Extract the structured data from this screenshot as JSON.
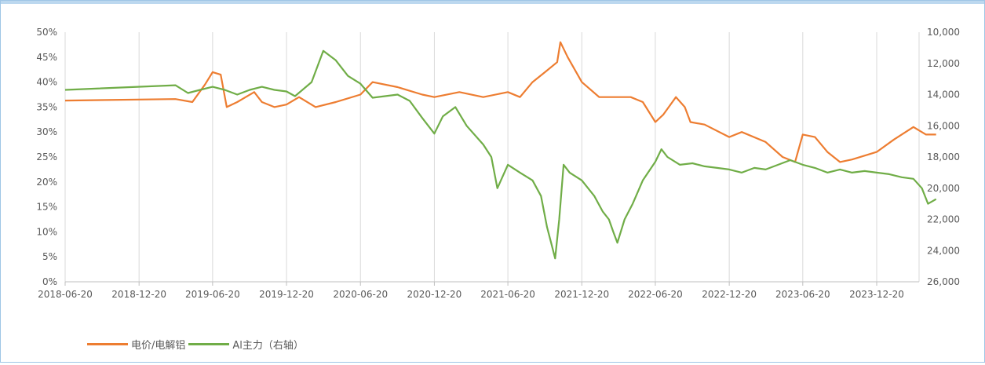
{
  "chart_data": {
    "type": "line",
    "title": "",
    "x_tick_labels": [
      "2018-06-20",
      "2018-12-20",
      "2019-06-20",
      "2019-12-20",
      "2020-06-20",
      "2020-12-20",
      "2021-06-20",
      "2021-12-20",
      "2022-06-20",
      "2022-12-20",
      "2023-06-20",
      "2023-12-20"
    ],
    "y_left": {
      "ticks": [
        "0%",
        "5%",
        "10%",
        "15%",
        "20%",
        "25%",
        "30%",
        "35%",
        "40%",
        "45%",
        "50%"
      ],
      "range": [
        0,
        50
      ]
    },
    "y_right": {
      "ticks": [
        "10,000",
        "12,000",
        "14,000",
        "16,000",
        "18,000",
        "20,000",
        "22,000",
        "24,000",
        "26,000"
      ],
      "range": [
        26000,
        10000
      ],
      "inverted": true
    },
    "legend_position": "bottom-left",
    "grid": "vertical",
    "series": [
      {
        "name": "电价/电解铝",
        "axis": "left",
        "color": "#ED7D31",
        "points": [
          [
            "2018-06-20",
            36.3
          ],
          [
            "2019-03-20",
            36.6
          ],
          [
            "2019-05-01",
            36.0
          ],
          [
            "2019-06-01",
            39.5
          ],
          [
            "2019-06-20",
            42.0
          ],
          [
            "2019-07-10",
            41.5
          ],
          [
            "2019-07-25",
            35.0
          ],
          [
            "2019-08-20",
            36.0
          ],
          [
            "2019-10-01",
            38.0
          ],
          [
            "2019-10-20",
            36.0
          ],
          [
            "2019-11-20",
            35.0
          ],
          [
            "2019-12-20",
            35.5
          ],
          [
            "2020-01-20",
            37.0
          ],
          [
            "2020-03-01",
            35.0
          ],
          [
            "2020-04-20",
            36.0
          ],
          [
            "2020-06-20",
            37.5
          ],
          [
            "2020-07-20",
            40.0
          ],
          [
            "2020-09-20",
            39.0
          ],
          [
            "2020-11-20",
            37.5
          ],
          [
            "2020-12-20",
            37.0
          ],
          [
            "2021-02-20",
            38.0
          ],
          [
            "2021-04-20",
            37.0
          ],
          [
            "2021-06-20",
            38.0
          ],
          [
            "2021-07-20",
            37.0
          ],
          [
            "2021-08-20",
            40.0
          ],
          [
            "2021-09-20",
            42.0
          ],
          [
            "2021-10-20",
            44.0
          ],
          [
            "2021-10-28",
            48.0
          ],
          [
            "2021-11-15",
            45.0
          ],
          [
            "2021-12-20",
            40.0
          ],
          [
            "2022-02-01",
            37.0
          ],
          [
            "2022-04-20",
            37.0
          ],
          [
            "2022-05-20",
            36.0
          ],
          [
            "2022-06-20",
            32.0
          ],
          [
            "2022-07-10",
            33.5
          ],
          [
            "2022-08-10",
            37.0
          ],
          [
            "2022-09-01",
            35.0
          ],
          [
            "2022-09-15",
            32.0
          ],
          [
            "2022-10-20",
            31.5
          ],
          [
            "2022-12-20",
            29.0
          ],
          [
            "2023-01-20",
            30.0
          ],
          [
            "2023-03-20",
            28.0
          ],
          [
            "2023-05-01",
            25.0
          ],
          [
            "2023-06-01",
            24.0
          ],
          [
            "2023-06-20",
            29.5
          ],
          [
            "2023-07-20",
            29.0
          ],
          [
            "2023-08-20",
            26.0
          ],
          [
            "2023-09-20",
            24.0
          ],
          [
            "2023-10-20",
            24.5
          ],
          [
            "2023-12-20",
            26.0
          ],
          [
            "2024-02-01",
            28.5
          ],
          [
            "2024-03-20",
            31.0
          ],
          [
            "2024-04-20",
            29.5
          ],
          [
            "2024-05-15",
            29.5
          ]
        ]
      },
      {
        "name": "Al主力（右轴）",
        "axis": "right",
        "color": "#70AD47",
        "points": [
          [
            "2018-06-20",
            13700
          ],
          [
            "2019-03-20",
            13400
          ],
          [
            "2019-04-20",
            13900
          ],
          [
            "2019-05-20",
            13700
          ],
          [
            "2019-06-20",
            13500
          ],
          [
            "2019-07-20",
            13700
          ],
          [
            "2019-08-20",
            14000
          ],
          [
            "2019-09-20",
            13700
          ],
          [
            "2019-10-20",
            13500
          ],
          [
            "2019-11-20",
            13700
          ],
          [
            "2019-12-20",
            13800
          ],
          [
            "2020-01-10",
            14100
          ],
          [
            "2020-02-20",
            13200
          ],
          [
            "2020-03-20",
            11200
          ],
          [
            "2020-04-20",
            11800
          ],
          [
            "2020-05-20",
            12800
          ],
          [
            "2020-06-20",
            13300
          ],
          [
            "2020-07-20",
            14200
          ],
          [
            "2020-09-20",
            14000
          ],
          [
            "2020-10-20",
            14400
          ],
          [
            "2020-11-20",
            15500
          ],
          [
            "2020-12-20",
            16500
          ],
          [
            "2021-01-10",
            15400
          ],
          [
            "2021-02-10",
            14800
          ],
          [
            "2021-03-10",
            16000
          ],
          [
            "2021-04-20",
            17200
          ],
          [
            "2021-05-10",
            18000
          ],
          [
            "2021-05-25",
            20000
          ],
          [
            "2021-06-20",
            18500
          ],
          [
            "2021-07-20",
            19000
          ],
          [
            "2021-08-20",
            19500
          ],
          [
            "2021-09-10",
            20500
          ],
          [
            "2021-09-25",
            22500
          ],
          [
            "2021-10-05",
            23500
          ],
          [
            "2021-10-15",
            24500
          ],
          [
            "2021-10-25",
            22000
          ],
          [
            "2021-11-05",
            18500
          ],
          [
            "2021-11-20",
            19000
          ],
          [
            "2021-12-20",
            19500
          ],
          [
            "2022-01-20",
            20500
          ],
          [
            "2022-02-10",
            21500
          ],
          [
            "2022-02-25",
            22000
          ],
          [
            "2022-03-08",
            22800
          ],
          [
            "2022-03-18",
            23500
          ],
          [
            "2022-04-05",
            22000
          ],
          [
            "2022-04-25",
            21000
          ],
          [
            "2022-05-20",
            19500
          ],
          [
            "2022-06-20",
            18300
          ],
          [
            "2022-07-05",
            17500
          ],
          [
            "2022-07-20",
            18000
          ],
          [
            "2022-08-20",
            18500
          ],
          [
            "2022-09-20",
            18400
          ],
          [
            "2022-10-20",
            18600
          ],
          [
            "2022-11-20",
            18700
          ],
          [
            "2022-12-20",
            18800
          ],
          [
            "2023-01-20",
            19000
          ],
          [
            "2023-02-20",
            18700
          ],
          [
            "2023-03-20",
            18800
          ],
          [
            "2023-04-20",
            18500
          ],
          [
            "2023-05-20",
            18200
          ],
          [
            "2023-06-20",
            18500
          ],
          [
            "2023-07-20",
            18700
          ],
          [
            "2023-08-20",
            19000
          ],
          [
            "2023-09-20",
            18800
          ],
          [
            "2023-10-20",
            19000
          ],
          [
            "2023-11-20",
            18900
          ],
          [
            "2023-12-20",
            19000
          ],
          [
            "2024-01-20",
            19100
          ],
          [
            "2024-02-20",
            19300
          ],
          [
            "2024-03-20",
            19400
          ],
          [
            "2024-04-10",
            20000
          ],
          [
            "2024-04-25",
            21000
          ],
          [
            "2024-05-15",
            20700
          ]
        ]
      }
    ]
  }
}
